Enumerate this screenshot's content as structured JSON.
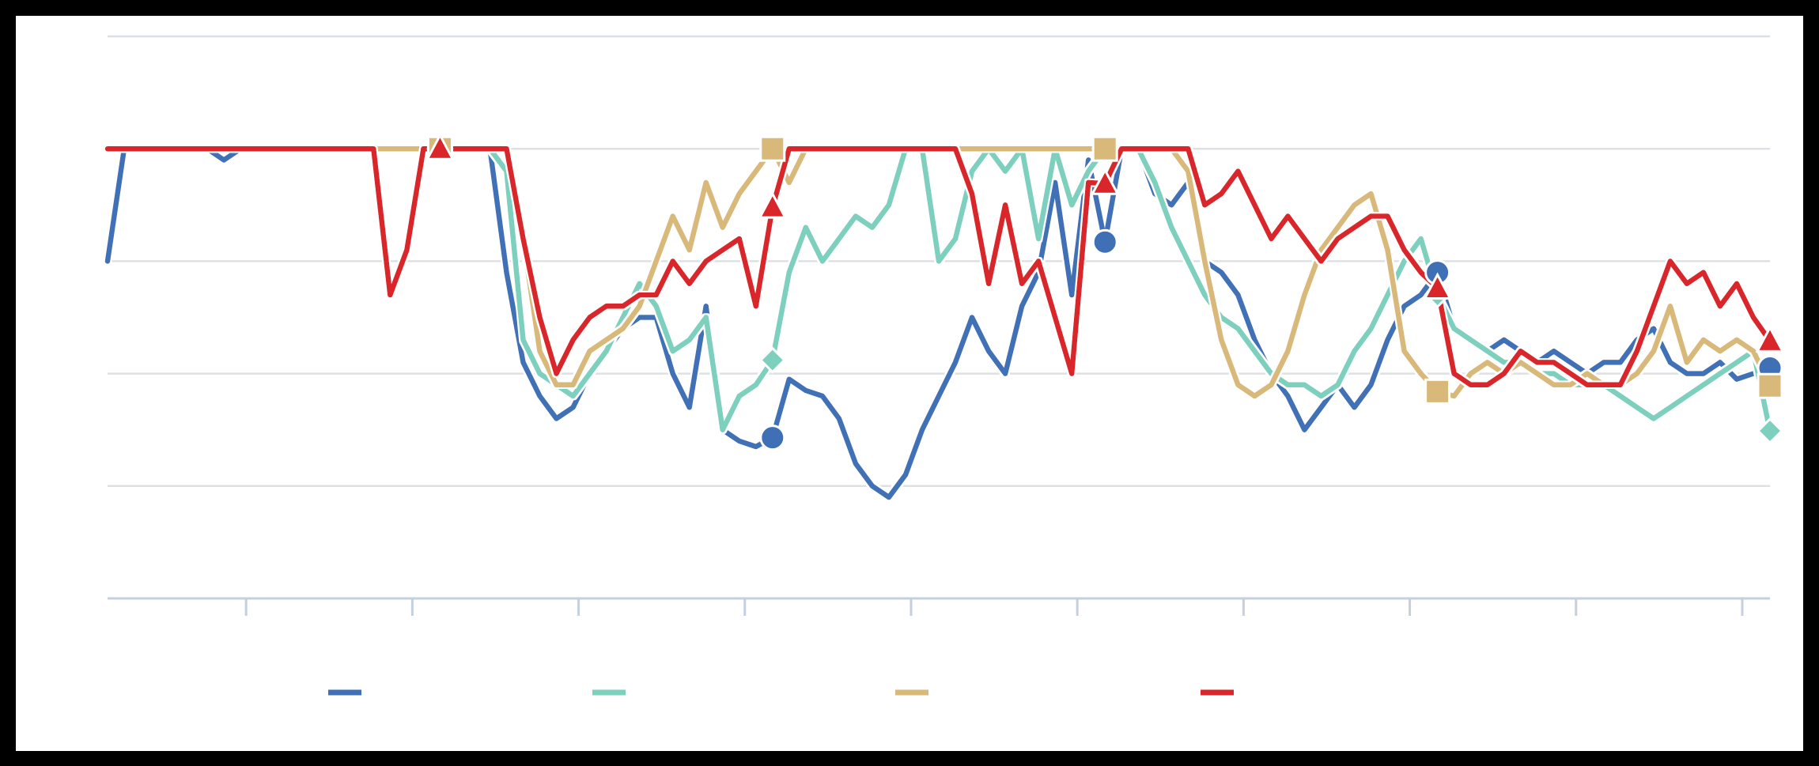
{
  "chart_data": {
    "type": "line",
    "x": [
      0,
      3,
      6,
      9,
      12,
      15,
      18,
      21,
      24,
      27,
      30,
      33,
      36,
      39,
      42,
      45,
      48,
      51,
      54,
      57,
      60,
      63,
      66,
      69,
      72,
      75,
      78,
      81,
      84,
      87,
      90,
      93,
      96,
      99,
      102,
      105,
      108,
      111,
      114,
      117,
      120,
      123,
      126,
      129,
      132,
      135,
      138,
      141,
      144,
      147,
      150,
      153,
      156,
      159,
      162,
      165,
      168,
      171,
      174,
      177,
      180,
      183,
      186,
      189,
      192,
      195,
      198,
      201,
      204,
      207,
      210,
      213,
      216,
      219,
      222,
      225,
      228,
      231,
      234,
      237,
      240,
      243,
      246,
      249,
      252,
      255,
      258,
      261,
      264,
      267,
      270,
      273,
      276,
      279,
      282,
      285,
      288,
      291,
      294,
      297,
      300
    ],
    "xlim": [
      0,
      300
    ],
    "xticks": [
      25,
      55,
      85,
      115,
      145,
      175,
      205,
      235,
      265,
      295
    ],
    "ylim": [
      0,
      5
    ],
    "yticks": [
      0,
      1,
      2,
      3,
      4,
      5
    ],
    "grid": true,
    "legend": "bottom",
    "markevery": 20,
    "series": [
      {
        "color": "#3f6fb5",
        "marker": "circle",
        "values": [
          3,
          4,
          4,
          4,
          4,
          4,
          4,
          3.9,
          4,
          4,
          4,
          4,
          4,
          4,
          4,
          4,
          4,
          4,
          4,
          4,
          4,
          4,
          4,
          4,
          2.9,
          2.1,
          1.8,
          1.6,
          1.7,
          2.0,
          2.2,
          2.4,
          2.5,
          2.5,
          2.0,
          1.7,
          2.6,
          1.5,
          1.4,
          1.35,
          1.43,
          1.95,
          1.85,
          1.8,
          1.6,
          1.2,
          1.0,
          0.9,
          1.1,
          1.5,
          1.8,
          2.1,
          2.5,
          2.2,
          2.0,
          2.6,
          2.9,
          3.7,
          2.7,
          3.9,
          3.17,
          4,
          4,
          3.6,
          3.5,
          3.7,
          3.0,
          2.9,
          2.7,
          2.3,
          2.0,
          1.8,
          1.5,
          1.7,
          1.9,
          1.7,
          1.9,
          2.3,
          2.6,
          2.7,
          2.9,
          2.4,
          2.3,
          2.2,
          2.3,
          2.2,
          2.1,
          2.2,
          2.1,
          2.0,
          2.1,
          2.1,
          2.3,
          2.4,
          2.1,
          2.0,
          2.0,
          2.1,
          1.95,
          2.0,
          2.05
        ]
      },
      {
        "color": "#7dcfbe",
        "marker": "diamond",
        "values": [
          4,
          4,
          4,
          4,
          4,
          4,
          4,
          4,
          4,
          4,
          4,
          4,
          4,
          4,
          4,
          4,
          4,
          4,
          4,
          4,
          4,
          4,
          4,
          4,
          3.8,
          2.3,
          2.0,
          1.9,
          1.8,
          2.0,
          2.2,
          2.5,
          2.8,
          2.6,
          2.2,
          2.3,
          2.5,
          1.5,
          1.8,
          1.9,
          2.12,
          2.9,
          3.3,
          3.0,
          3.2,
          3.4,
          3.3,
          3.5,
          4.0,
          4.0,
          3.0,
          3.2,
          3.8,
          4.0,
          3.8,
          4.0,
          3.2,
          4.0,
          3.5,
          3.8,
          4.0,
          4,
          4,
          3.7,
          3.3,
          3.0,
          2.7,
          2.5,
          2.4,
          2.2,
          2.0,
          1.9,
          1.9,
          1.8,
          1.9,
          2.2,
          2.4,
          2.7,
          3.0,
          3.2,
          2.7,
          2.4,
          2.3,
          2.2,
          2.1,
          2.1,
          2.0,
          2.0,
          1.9,
          1.9,
          1.9,
          1.8,
          1.7,
          1.6,
          1.7,
          1.8,
          1.9,
          2.0,
          2.1,
          2.2,
          1.49
        ]
      },
      {
        "color": "#d9b97a",
        "marker": "square",
        "values": [
          4,
          4,
          4,
          4,
          4,
          4,
          4,
          4,
          4,
          4,
          4,
          4,
          4,
          4,
          4,
          4,
          4,
          4,
          4,
          4,
          4,
          4,
          4,
          4,
          4.0,
          3.2,
          2.2,
          1.9,
          1.9,
          2.2,
          2.3,
          2.4,
          2.6,
          3.0,
          3.4,
          3.1,
          3.7,
          3.3,
          3.6,
          3.8,
          4.0,
          3.7,
          4.0,
          4,
          4,
          4,
          4,
          4,
          4,
          4,
          4,
          4,
          4,
          4,
          4,
          4,
          4,
          4,
          4,
          4,
          4,
          4,
          4,
          4,
          4.0,
          3.8,
          3.0,
          2.3,
          1.9,
          1.8,
          1.9,
          2.2,
          2.7,
          3.1,
          3.3,
          3.5,
          3.6,
          3.1,
          2.2,
          2.0,
          1.84,
          1.8,
          2.0,
          2.1,
          2.0,
          2.1,
          2.0,
          1.9,
          1.9,
          2.0,
          1.9,
          1.9,
          2.0,
          2.2,
          2.6,
          2.1,
          2.3,
          2.2,
          2.3,
          2.2,
          1.89
        ]
      },
      {
        "color": "#d9262a",
        "marker": "triangle",
        "values": [
          4,
          4,
          4,
          4,
          4,
          4,
          4,
          4,
          4,
          4,
          4,
          4,
          4,
          4,
          4,
          4,
          4.0,
          2.7,
          3.1,
          4.0,
          4.0,
          4,
          4,
          4,
          4,
          3.2,
          2.5,
          2.0,
          2.3,
          2.5,
          2.6,
          2.6,
          2.7,
          2.7,
          3.0,
          2.8,
          3.0,
          3.1,
          3.2,
          2.6,
          3.48,
          4.0,
          4,
          4,
          4,
          4,
          4,
          4,
          4,
          4,
          4,
          4,
          3.6,
          2.8,
          3.5,
          2.8,
          3.0,
          2.5,
          2.0,
          3.7,
          3.69,
          4,
          4,
          4,
          4,
          4,
          3.5,
          3.6,
          3.8,
          3.5,
          3.2,
          3.4,
          3.2,
          3.0,
          3.2,
          3.3,
          3.4,
          3.4,
          3.1,
          2.9,
          2.76,
          2.0,
          1.9,
          1.9,
          2.0,
          2.2,
          2.1,
          2.1,
          2.0,
          1.9,
          1.9,
          1.9,
          2.2,
          2.6,
          3.0,
          2.8,
          2.9,
          2.6,
          2.8,
          2.5,
          2.29
        ]
      }
    ]
  }
}
